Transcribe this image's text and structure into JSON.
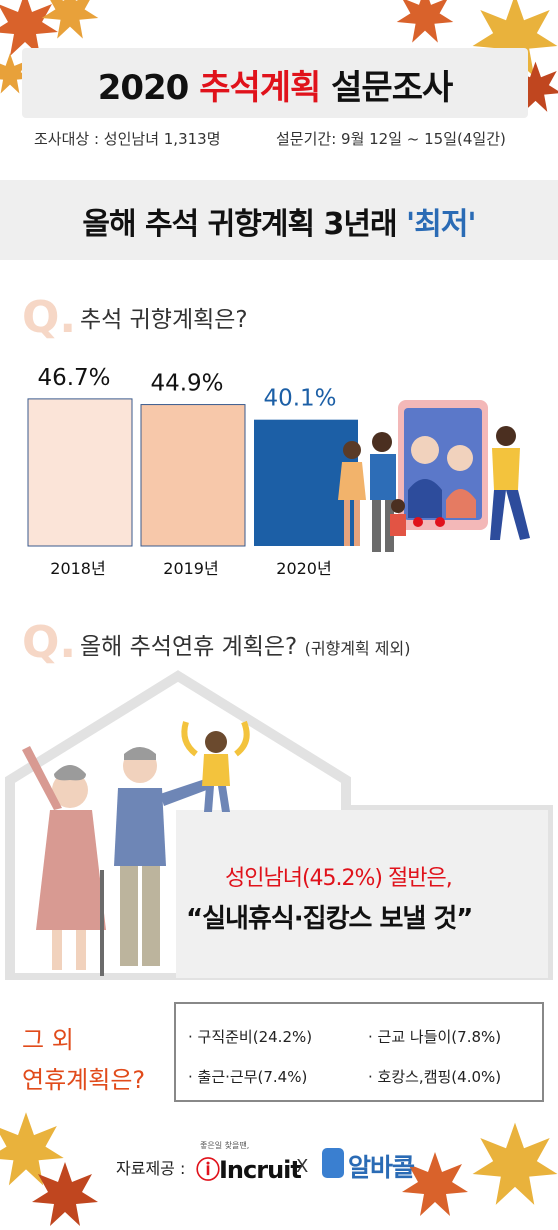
{
  "header": {
    "title_year": "2020",
    "title_accent": "추석계획",
    "title_rest": "설문조사",
    "survey_target": "조사대상 : 성인남녀 1,313명",
    "survey_period": "설문기간: 9월 12일 ~ 15일(4일간)"
  },
  "headline": {
    "main": "올해 추석 귀향계획 3년래",
    "accent": "'최저'"
  },
  "q1": {
    "mark": "Q.",
    "text": "추석 귀향계획은?"
  },
  "chart_data": {
    "type": "bar",
    "categories": [
      "2018년",
      "2019년",
      "2020년"
    ],
    "values": [
      46.7,
      44.9,
      40.1
    ],
    "value_labels": [
      "46.7%",
      "44.9%",
      "40.1%"
    ],
    "colors": [
      "#fbe4d8",
      "#f7c8aa",
      "#1c5fa6"
    ],
    "title": "",
    "xlabel": "",
    "ylabel": "",
    "grid": false
  },
  "q2": {
    "mark": "Q.",
    "text": "올해 추석연휴 계획은?",
    "sub": "(귀향계획 제외)"
  },
  "result": {
    "line1": "성인남녀(45.2%) 절반은,",
    "line2": "“실내휴식·집캉스 보낼 것”"
  },
  "other": {
    "q_line1": "그 외",
    "q_line2": "연휴계획은?",
    "plans": [
      "· 구직준비(24.2%)",
      "· 근교 나들이(7.8%)",
      "· 출근·근무(7.4%)",
      "· 호캉스,캠핑(4.0%)"
    ]
  },
  "credits": {
    "label": "자료제공 :",
    "incruit_slogan": "좋은일 찾을땐,",
    "incruit_logo": "Incruit",
    "x": "X",
    "albacall_logo": "알바콜"
  },
  "colors": {
    "accent_red": "#e0121b",
    "accent_blue": "#2a6bb5",
    "q_mark": "#f6d7c6"
  }
}
